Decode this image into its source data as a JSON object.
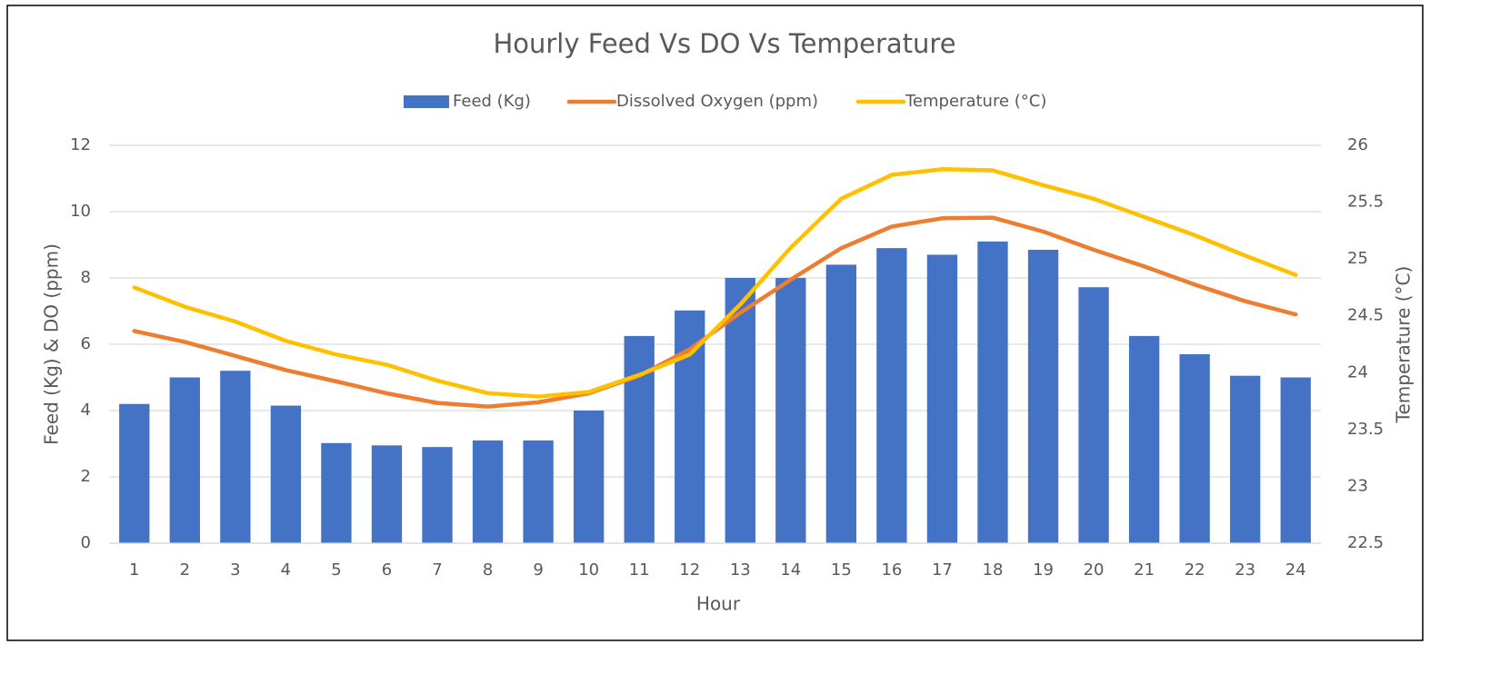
{
  "chart_data": {
    "type": "bar-line",
    "title": "Hourly Feed Vs DO Vs Temperature",
    "x_label": "Hour",
    "y_label": "Feed (Kg) & DO (ppm)",
    "y2_label": "Temperature (°C)",
    "categories": [
      "1",
      "2",
      "3",
      "4",
      "5",
      "6",
      "7",
      "8",
      "9",
      "10",
      "11",
      "12",
      "13",
      "14",
      "15",
      "16",
      "17",
      "18",
      "19",
      "20",
      "21",
      "22",
      "23",
      "24"
    ],
    "series": [
      {
        "name": "Feed (Kg)",
        "type": "bar",
        "color": "#4472c4",
        "values": [
          4.2,
          5.0,
          5.2,
          4.15,
          3.02,
          2.95,
          2.9,
          3.1,
          3.1,
          4.0,
          6.25,
          7.02,
          8.0,
          8.0,
          8.4,
          8.9,
          8.7,
          9.1,
          8.85,
          7.72,
          6.25,
          5.7,
          5.05,
          5.0
        ]
      },
      {
        "name": "Dissolved Oxygen (ppm)",
        "type": "line",
        "color": "#ed7d31",
        "values": [
          6.4,
          6.07,
          5.65,
          5.22,
          4.88,
          4.52,
          4.23,
          4.12,
          4.25,
          4.52,
          5.05,
          5.85,
          6.95,
          7.95,
          8.9,
          9.55,
          9.8,
          9.82,
          9.4,
          8.85,
          8.35,
          7.8,
          7.3,
          6.9
        ]
      },
      {
        "name": "Temperature (°C)",
        "type": "line",
        "axis": "y2",
        "color": "#ffc000",
        "values": [
          24.75,
          24.58,
          24.45,
          24.28,
          24.16,
          24.07,
          23.93,
          23.82,
          23.79,
          23.83,
          23.98,
          24.16,
          24.6,
          25.1,
          25.53,
          25.74,
          25.79,
          25.78,
          25.65,
          25.53,
          25.37,
          25.21,
          25.03,
          24.86
        ]
      }
    ],
    "ylim": [
      0,
      12
    ],
    "yticks": [
      0,
      2,
      4,
      6,
      8,
      10,
      12
    ],
    "y2lim": [
      22.5,
      26
    ],
    "y2ticks": [
      22.5,
      23,
      23.5,
      24,
      24.5,
      25,
      25.5,
      26
    ],
    "grid": true,
    "legend": "top"
  }
}
